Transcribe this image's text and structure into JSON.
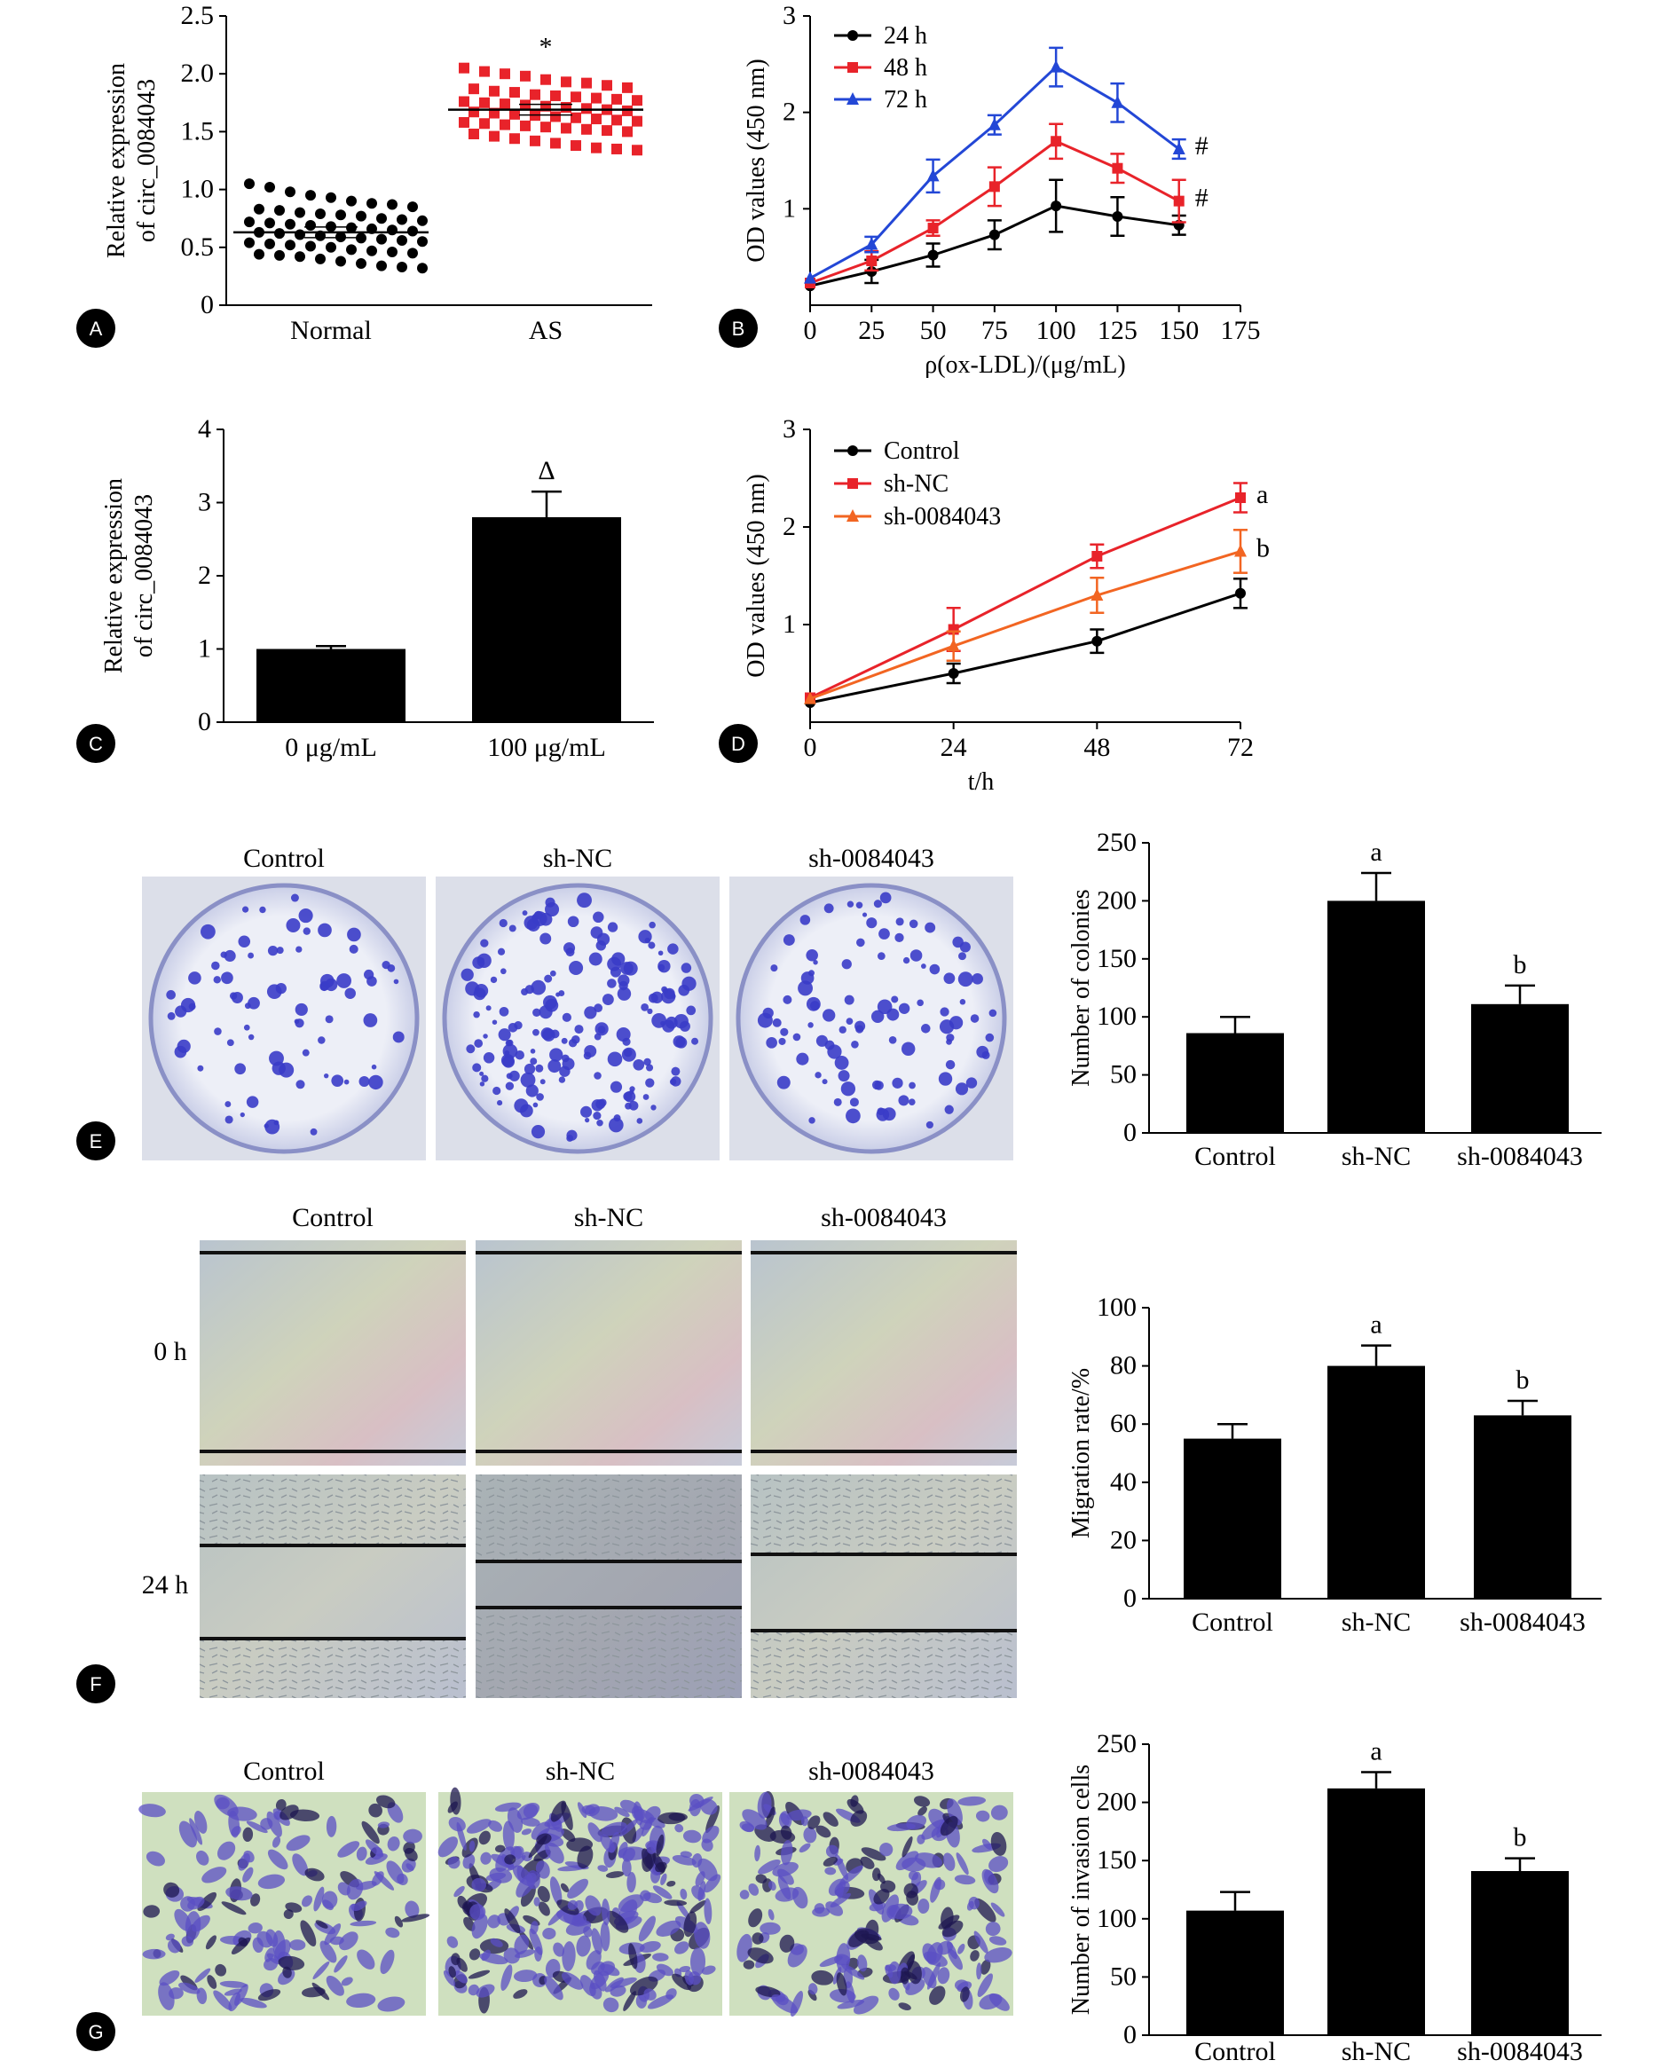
{
  "figure": {
    "labels": [
      "A",
      "B",
      "C",
      "D",
      "E",
      "F",
      "G"
    ]
  },
  "chart_data": [
    {
      "id": "A",
      "type": "scatter",
      "ylabel_line1": "Relative expression",
      "ylabel_line2": "of circ_0084043",
      "ylim": [
        0,
        2.5
      ],
      "yticks": [
        "0",
        "0.5",
        "1.0",
        "1.5",
        "2.0",
        "2.5"
      ],
      "categories": [
        "Normal",
        "AS"
      ],
      "groups": [
        {
          "name": "Normal",
          "color": "#000000",
          "marker": "circle",
          "mean": 0.63,
          "values": [
            1.05,
            1.02,
            0.98,
            0.95,
            0.93,
            0.9,
            0.88,
            0.87,
            0.85,
            0.83,
            0.82,
            0.8,
            0.79,
            0.78,
            0.77,
            0.75,
            0.74,
            0.73,
            0.72,
            0.71,
            0.7,
            0.69,
            0.68,
            0.67,
            0.66,
            0.65,
            0.64,
            0.63,
            0.62,
            0.61,
            0.6,
            0.59,
            0.58,
            0.57,
            0.56,
            0.55,
            0.54,
            0.53,
            0.52,
            0.51,
            0.5,
            0.48,
            0.47,
            0.46,
            0.45,
            0.44,
            0.43,
            0.42,
            0.4,
            0.38,
            0.36,
            0.34,
            0.33,
            0.32
          ]
        },
        {
          "name": "AS",
          "color": "#e8232a",
          "marker": "square",
          "mean": 1.69,
          "values": [
            2.05,
            2.02,
            2.0,
            1.98,
            1.95,
            1.93,
            1.92,
            1.9,
            1.88,
            1.87,
            1.85,
            1.84,
            1.82,
            1.81,
            1.8,
            1.79,
            1.78,
            1.77,
            1.76,
            1.75,
            1.74,
            1.73,
            1.72,
            1.71,
            1.7,
            1.69,
            1.68,
            1.67,
            1.66,
            1.65,
            1.64,
            1.63,
            1.62,
            1.61,
            1.6,
            1.59,
            1.58,
            1.57,
            1.56,
            1.55,
            1.54,
            1.53,
            1.52,
            1.51,
            1.5,
            1.48,
            1.46,
            1.44,
            1.42,
            1.4,
            1.38,
            1.36,
            1.35,
            1.34
          ]
        }
      ],
      "significance": {
        "category": "AS",
        "mark": "*"
      }
    },
    {
      "id": "B",
      "type": "line",
      "ylabel": "OD values (450 nm)",
      "xlabel": "ρ(ox-LDL)/(μg/mL)",
      "xlim": [
        0,
        175
      ],
      "ylim": [
        0,
        3
      ],
      "xticks": [
        "0",
        "25",
        "50",
        "75",
        "100",
        "125",
        "150",
        "175"
      ],
      "yticks": [
        "1",
        "2",
        "3"
      ],
      "x": [
        0,
        25,
        50,
        75,
        100,
        125,
        150
      ],
      "series": [
        {
          "name": "24 h",
          "color": "#000000",
          "marker": "circle",
          "values": [
            0.2,
            0.35,
            0.52,
            0.73,
            1.03,
            0.92,
            0.83
          ],
          "errors": [
            0.03,
            0.12,
            0.12,
            0.15,
            0.27,
            0.2,
            0.1
          ]
        },
        {
          "name": "48 h",
          "color": "#e8232a",
          "marker": "square",
          "values": [
            0.23,
            0.46,
            0.8,
            1.23,
            1.7,
            1.42,
            1.08
          ],
          "errors": [
            0.03,
            0.1,
            0.08,
            0.2,
            0.18,
            0.15,
            0.22
          ]
        },
        {
          "name": "72 h",
          "color": "#2347d6",
          "marker": "triangle",
          "values": [
            0.28,
            0.63,
            1.34,
            1.87,
            2.47,
            2.1,
            1.62
          ],
          "errors": [
            0.03,
            0.08,
            0.17,
            0.1,
            0.2,
            0.2,
            0.1
          ]
        }
      ],
      "annotations": [
        {
          "series": "72 h",
          "x": 150,
          "text": "#"
        },
        {
          "series": "48 h",
          "x": 150,
          "text": "#"
        }
      ]
    },
    {
      "id": "C",
      "type": "bar",
      "ylabel_line1": "Relative expression",
      "ylabel_line2": "of circ_0084043",
      "ylim": [
        0,
        4
      ],
      "yticks": [
        "0",
        "1",
        "2",
        "3",
        "4"
      ],
      "categories": [
        "0 μg/mL",
        "100 μg/mL"
      ],
      "values": [
        1.0,
        2.8
      ],
      "errors": [
        0.04,
        0.35
      ],
      "significance": [
        {
          "category": "100 μg/mL",
          "mark": "Δ"
        }
      ]
    },
    {
      "id": "D",
      "type": "line",
      "ylabel": "OD values (450 nm)",
      "xlabel": "t/h",
      "xlim": [
        0,
        72
      ],
      "ylim": [
        0,
        3
      ],
      "xticks": [
        "0",
        "24",
        "48",
        "72"
      ],
      "yticks": [
        "1",
        "2",
        "3"
      ],
      "x": [
        0,
        24,
        48,
        72
      ],
      "series": [
        {
          "name": "Control",
          "color": "#000000",
          "marker": "circle",
          "values": [
            0.2,
            0.5,
            0.83,
            1.32
          ],
          "errors": [
            0.03,
            0.1,
            0.12,
            0.15
          ]
        },
        {
          "name": "sh-NC",
          "color": "#e8232a",
          "marker": "square",
          "values": [
            0.25,
            0.95,
            1.7,
            2.3
          ],
          "errors": [
            0.03,
            0.22,
            0.12,
            0.15
          ]
        },
        {
          "name": "sh-0084043",
          "color": "#f26522",
          "marker": "triangle",
          "values": [
            0.24,
            0.78,
            1.3,
            1.75
          ],
          "errors": [
            0.03,
            0.15,
            0.18,
            0.22
          ]
        }
      ],
      "annotations": [
        {
          "series": "sh-NC",
          "x": 72,
          "text": "a"
        },
        {
          "series": "sh-0084043",
          "x": 72,
          "text": "b"
        }
      ]
    },
    {
      "id": "E",
      "type": "bar",
      "ylabel": "Number of colonies",
      "ylim": [
        0,
        250
      ],
      "yticks": [
        "0",
        "50",
        "100",
        "150",
        "200",
        "250"
      ],
      "categories": [
        "Control",
        "sh-NC",
        "sh-0084043"
      ],
      "values": [
        86,
        200,
        111
      ],
      "errors": [
        14,
        24,
        16
      ],
      "significance": [
        {
          "category": "sh-NC",
          "mark": "a"
        },
        {
          "category": "sh-0084043",
          "mark": "b"
        }
      ]
    },
    {
      "id": "F",
      "type": "bar",
      "ylabel": "Migration rate/%",
      "ylim": [
        0,
        100
      ],
      "yticks": [
        "0",
        "20",
        "40",
        "60",
        "80",
        "100"
      ],
      "categories": [
        "Control",
        "sh-NC",
        "sh-0084043"
      ],
      "values": [
        55,
        80,
        63
      ],
      "errors": [
        5,
        7,
        5
      ],
      "significance": [
        {
          "category": "sh-NC",
          "mark": "a"
        },
        {
          "category": "sh-0084043",
          "mark": "b"
        }
      ]
    },
    {
      "id": "G",
      "type": "bar",
      "ylabel": "Number of invasion cells",
      "ylim": [
        0,
        250
      ],
      "yticks": [
        "0",
        "50",
        "100",
        "150",
        "200",
        "250"
      ],
      "categories": [
        "Control",
        "sh-NC",
        "sh-0084043"
      ],
      "values": [
        107,
        212,
        141
      ],
      "errors": [
        16,
        14,
        11
      ],
      "significance": [
        {
          "category": "sh-NC",
          "mark": "a"
        },
        {
          "category": "sh-0084043",
          "mark": "b"
        }
      ]
    }
  ],
  "images": {
    "E": {
      "columns": [
        "Control",
        "sh-NC",
        "sh-0084043"
      ],
      "colony_counts": [
        86,
        200,
        111
      ]
    },
    "F": {
      "columns": [
        "Control",
        "sh-NC",
        "sh-0084043"
      ],
      "rows": [
        "0 h",
        "24 h"
      ]
    },
    "G": {
      "columns": [
        "Control",
        "sh-NC",
        "sh-0084043"
      ]
    }
  },
  "colors": {
    "purple": "#3a3cc8",
    "dish_bg": "#e9ebf4",
    "wound_bg": "#c3ccd6",
    "stain_bg": "#cfe0bf"
  }
}
